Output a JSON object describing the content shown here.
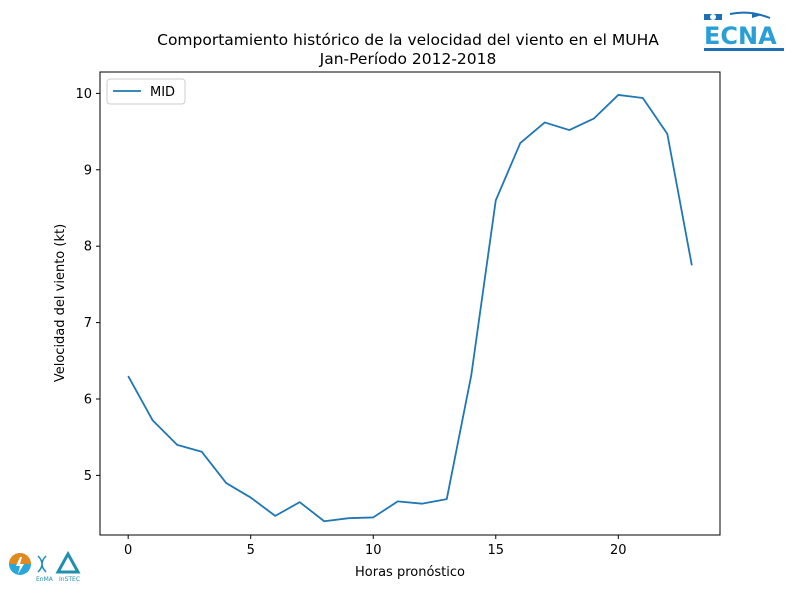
{
  "chart_data": {
    "type": "line",
    "title": "Comportamiento histórico de la velocidad del viento en el MUHA",
    "subtitle": "Jan-Período 2012-2018",
    "xlabel": "Horas pronóstico",
    "ylabel": "Velocidad del viento (kt)",
    "xlim": [
      -1.15,
      24.15
    ],
    "ylim": [
      4.22,
      10.28
    ],
    "xticks": [
      0,
      5,
      10,
      15,
      20
    ],
    "yticks": [
      5,
      6,
      7,
      8,
      9,
      10
    ],
    "grid": false,
    "legend_position": "top-left",
    "series": [
      {
        "name": "MID",
        "color": "#1f77b4",
        "x": [
          0,
          1,
          2,
          3,
          4,
          5,
          6,
          7,
          8,
          9,
          10,
          11,
          12,
          13,
          14,
          15,
          16,
          17,
          18,
          19,
          20,
          21,
          22,
          23
        ],
        "y": [
          6.3,
          5.72,
          5.4,
          5.31,
          4.9,
          4.71,
          4.47,
          4.65,
          4.4,
          4.44,
          4.45,
          4.66,
          4.63,
          4.69,
          6.31,
          8.6,
          9.35,
          9.62,
          9.52,
          9.67,
          9.98,
          9.94,
          9.47,
          7.75
        ]
      }
    ]
  },
  "logos": {
    "top_right": {
      "name": "ECNA",
      "text": "ECNA",
      "color": "#2a9fd6"
    },
    "bottom_left": {
      "name": "EnMA InSTEC",
      "text": [
        "EnMA",
        "InSTEC"
      ],
      "color": "#1f8fb0"
    }
  }
}
